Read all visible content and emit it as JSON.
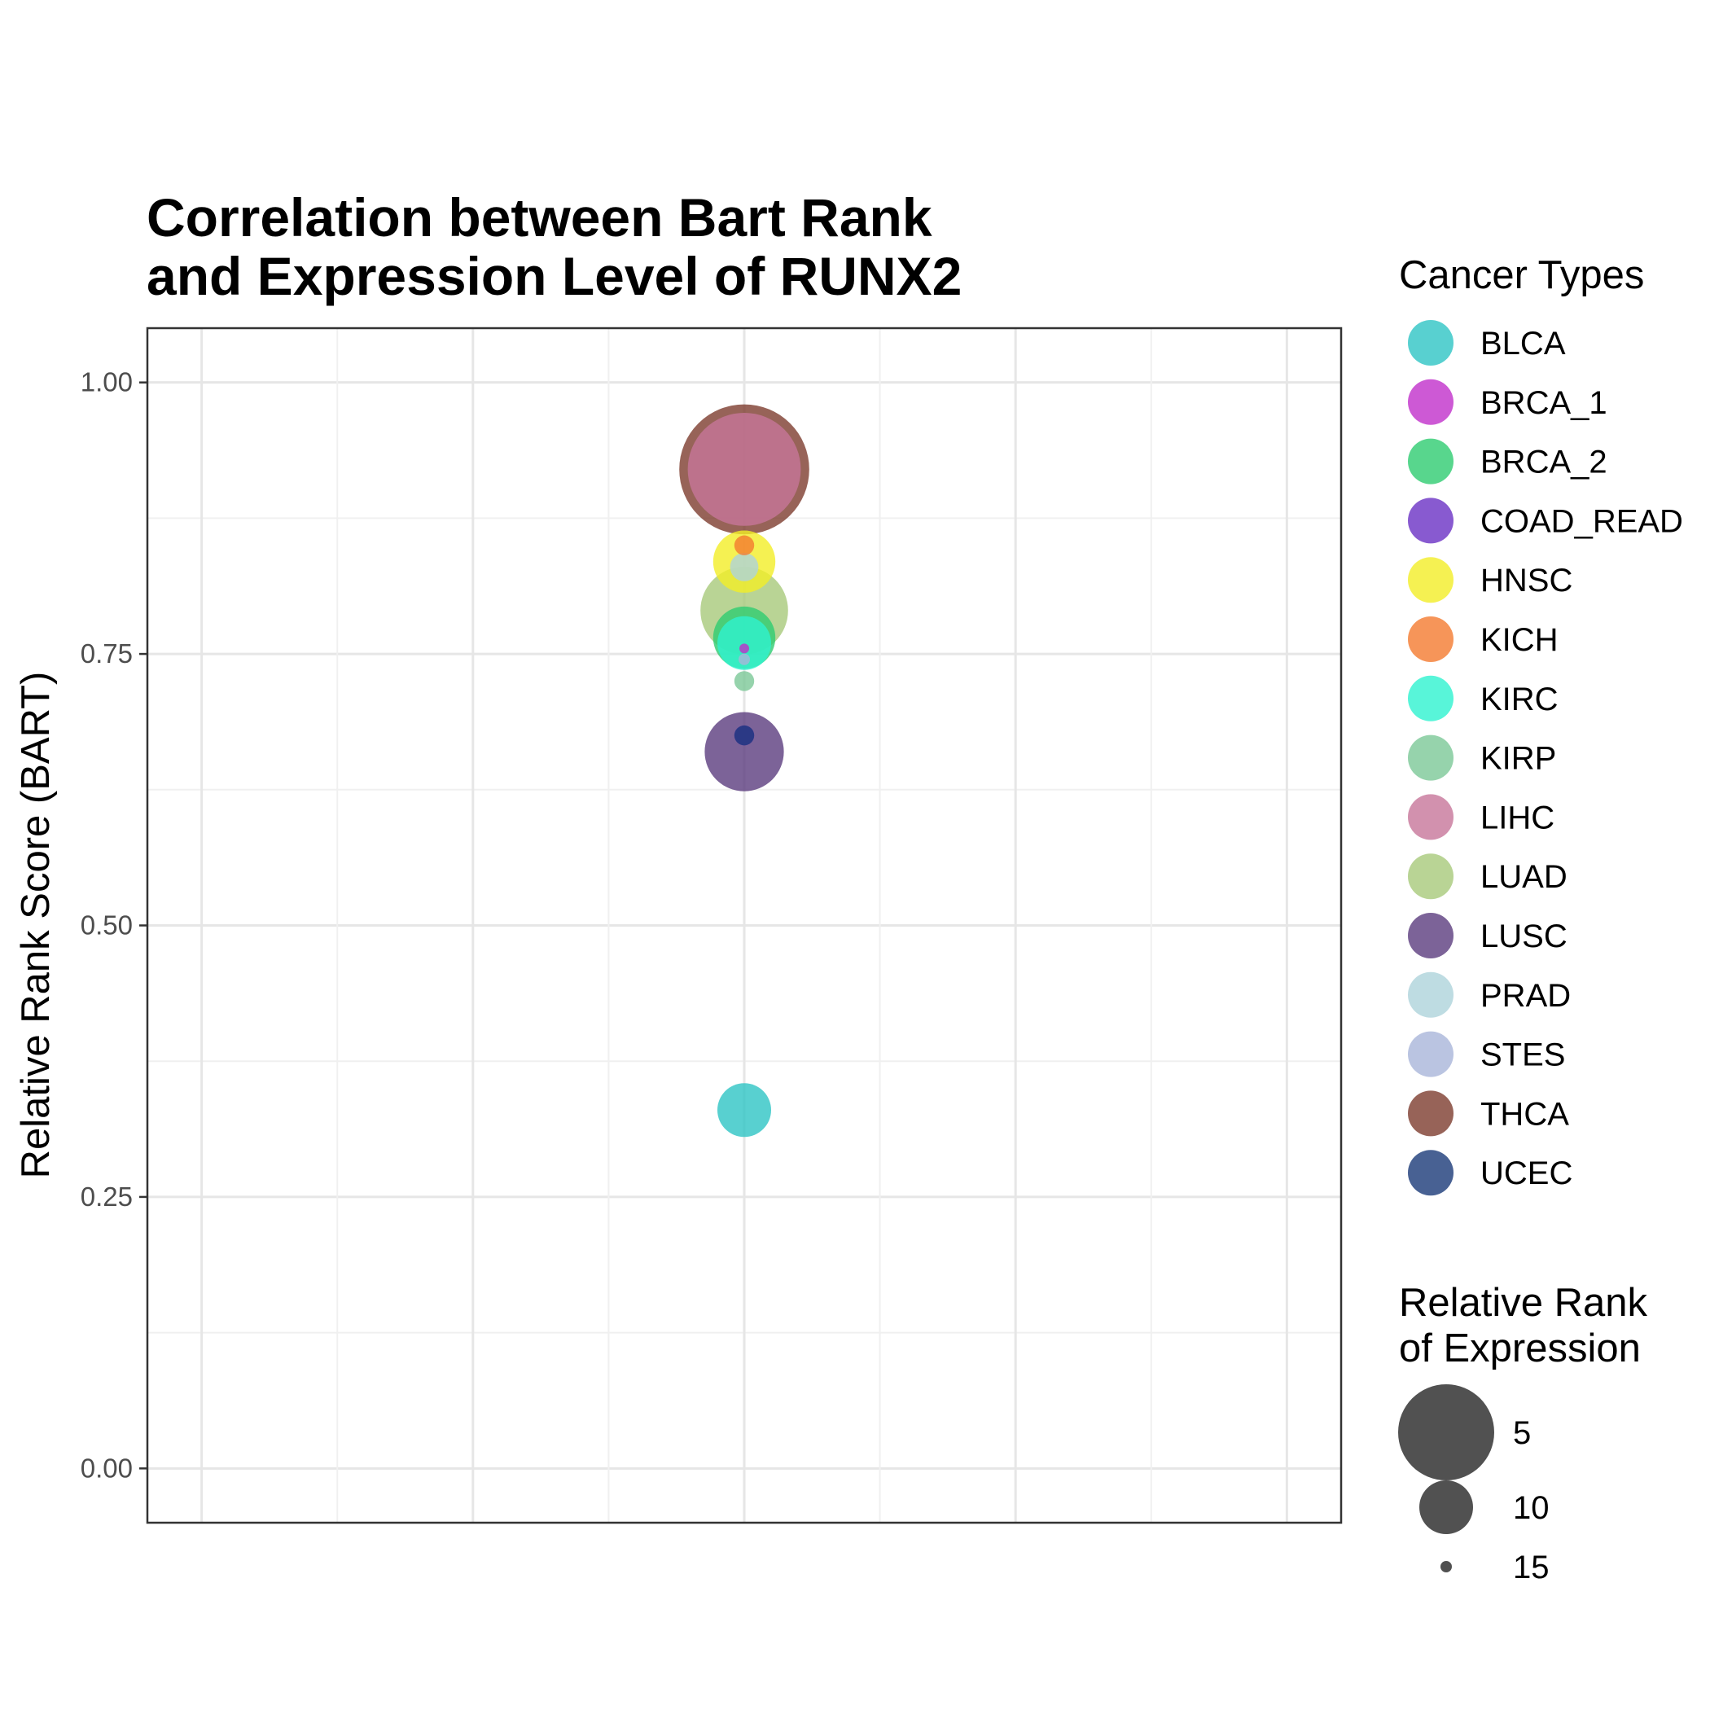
{
  "chart_data": {
    "type": "scatter",
    "title_lines": [
      "Correlation between Bart Rank",
      "and Expression Level of RUNX2"
    ],
    "ylabel": "Relative Rank Score (BART)",
    "xlabel": "",
    "ylim": [
      -0.05,
      1.05
    ],
    "yticks": [
      0.0,
      0.25,
      0.5,
      0.75,
      1.0
    ],
    "ytick_labels": [
      "0.00",
      "0.25",
      "0.50",
      "0.75",
      "1.00"
    ],
    "grid": true,
    "legend_placement": "right",
    "color_legend_title": "Cancer Types",
    "size_legend_title_lines": [
      "Relative Rank",
      "of Expression"
    ],
    "size_legend": [
      {
        "label": "5",
        "value": 5
      },
      {
        "label": "10",
        "value": 10
      },
      {
        "label": "15",
        "value": 15
      }
    ],
    "series": [
      {
        "name": "BLCA",
        "color": "#2EC4C4",
        "y": 0.33,
        "expr_rank": 10
      },
      {
        "name": "BRCA_1",
        "color": "#C12FCB",
        "y": 0.755,
        "expr_rank": 16
      },
      {
        "name": "BRCA_2",
        "color": "#2ECC71",
        "y": 0.765,
        "expr_rank": 9
      },
      {
        "name": "COAD_READ",
        "color": "#6A31C4",
        "y": 0.675,
        "expr_rank": 14
      },
      {
        "name": "HNSC",
        "color": "#F2EE27",
        "y": 0.835,
        "expr_rank": 9
      },
      {
        "name": "KICH",
        "color": "#F47B30",
        "y": 0.85,
        "expr_rank": 14
      },
      {
        "name": "KIRC",
        "color": "#2EF2D0",
        "y": 0.76,
        "expr_rank": 10
      },
      {
        "name": "KIRP",
        "color": "#7CC897",
        "y": 0.725,
        "expr_rank": 14
      },
      {
        "name": "LIHC",
        "color": "#C7769A",
        "y": 0.92,
        "expr_rank": 3
      },
      {
        "name": "LUAD",
        "color": "#A8C97B",
        "y": 0.79,
        "expr_rank": 6
      },
      {
        "name": "LUSC",
        "color": "#5B3C7E",
        "y": 0.66,
        "expr_rank": 7
      },
      {
        "name": "PRAD",
        "color": "#AED3DB",
        "y": 0.83,
        "expr_rank": 13
      },
      {
        "name": "STES",
        "color": "#A9B5D9",
        "y": 0.745,
        "expr_rank": 15
      },
      {
        "name": "THCA",
        "color": "#7D3C2E",
        "y": 0.92,
        "expr_rank": 1
      },
      {
        "name": "UCEC",
        "color": "#1A3A78",
        "y": 0.675,
        "expr_rank": 14
      }
    ]
  }
}
